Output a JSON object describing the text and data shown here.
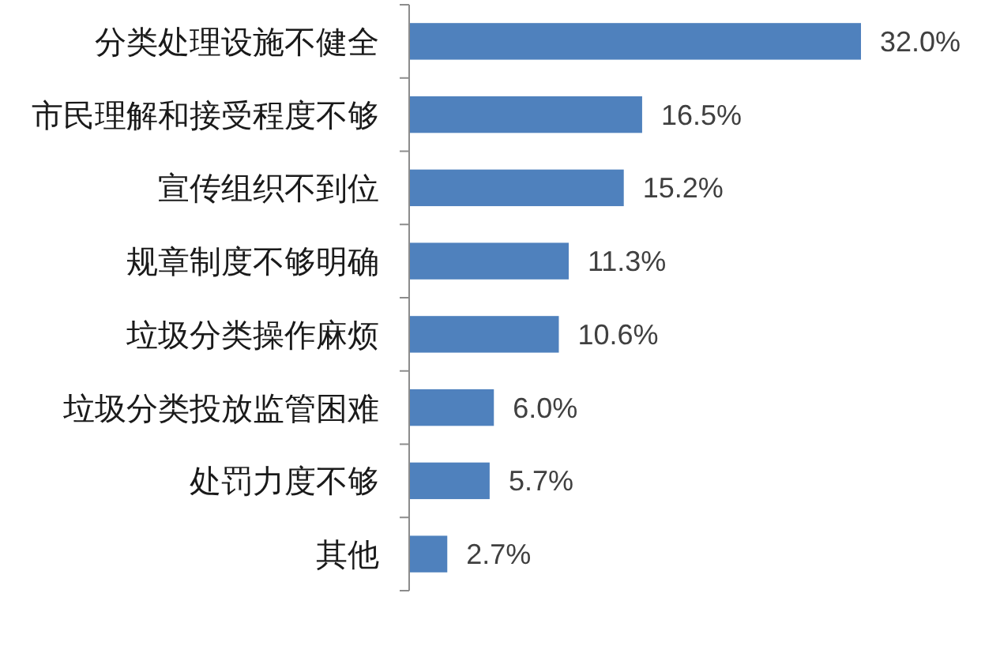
{
  "chart_data": {
    "type": "bar",
    "orientation": "horizontal",
    "categories": [
      "分类处理设施不健全",
      "市民理解和接受程度不够",
      "宣传组织不到位",
      "规章制度不够明确",
      "垃圾分类操作麻烦",
      "垃圾分类投放监管困难",
      "处罚力度不够",
      "其他"
    ],
    "values": [
      32.0,
      16.5,
      15.2,
      11.3,
      10.6,
      6.0,
      5.7,
      2.7
    ],
    "color": "#4f81bd",
    "value_labels": [
      "32.0%",
      "16.5%",
      "15.2%",
      "11.3%",
      "10.6%",
      "6.0%",
      "5.7%",
      "2.7%"
    ]
  }
}
